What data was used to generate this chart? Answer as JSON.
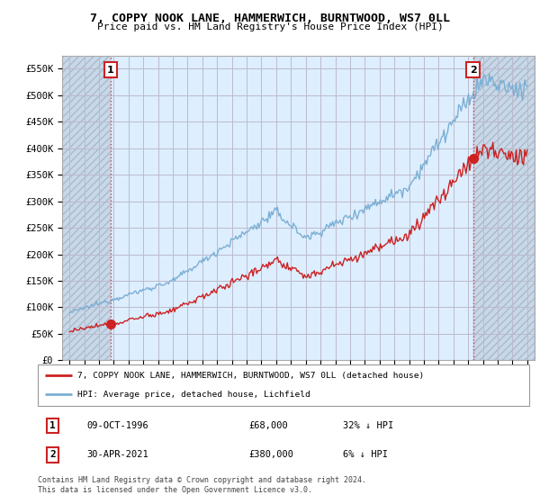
{
  "title": "7, COPPY NOOK LANE, HAMMERWICH, BURNTWOOD, WS7 0LL",
  "subtitle": "Price paid vs. HM Land Registry's House Price Index (HPI)",
  "ylabel_ticks": [
    "£0",
    "£50K",
    "£100K",
    "£150K",
    "£200K",
    "£250K",
    "£300K",
    "£350K",
    "£400K",
    "£450K",
    "£500K",
    "£550K"
  ],
  "ytick_values": [
    0,
    50000,
    100000,
    150000,
    200000,
    250000,
    300000,
    350000,
    400000,
    450000,
    500000,
    550000
  ],
  "ylim": [
    0,
    575000
  ],
  "xlim_start": 1993.5,
  "xlim_end": 2025.5,
  "sale1_date": 1996.78,
  "sale1_price": 68000,
  "sale2_date": 2021.33,
  "sale2_price": 380000,
  "legend_line1": "7, COPPY NOOK LANE, HAMMERWICH, BURNTWOOD, WS7 0LL (detached house)",
  "legend_line2": "HPI: Average price, detached house, Lichfield",
  "footer": "Contains HM Land Registry data © Crown copyright and database right 2024.\nThis data is licensed under the Open Government Licence v3.0.",
  "hpi_color": "#7bafd4",
  "price_color": "#cc2222",
  "vline_color": "#dd4444",
  "bg_color": "#ddeeff",
  "grid_color": "#bbbbcc",
  "background_color": "#ffffff",
  "hatch_color": "#c8d8e8"
}
